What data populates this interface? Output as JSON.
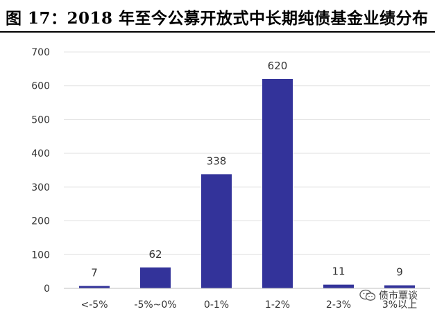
{
  "figure_title": "图 17：2018 年至今公募开放式中长期纯债基金业绩分布",
  "watermark": {
    "text": "债市覃谈",
    "icon": "wechat-icon"
  },
  "chart_data": {
    "type": "bar",
    "title": "",
    "xlabel": "",
    "ylabel": "",
    "categories": [
      "<-5%",
      "-5%~0%",
      "0-1%",
      "1-2%",
      "2-3%",
      "3%以上"
    ],
    "values": [
      7,
      62,
      338,
      620,
      11,
      9
    ],
    "ylim": [
      0,
      700
    ],
    "yticks": [
      0,
      100,
      200,
      300,
      400,
      500,
      600,
      700
    ],
    "grid": true,
    "legend": "none",
    "bar_color": "#33339a",
    "data_labels": true
  }
}
